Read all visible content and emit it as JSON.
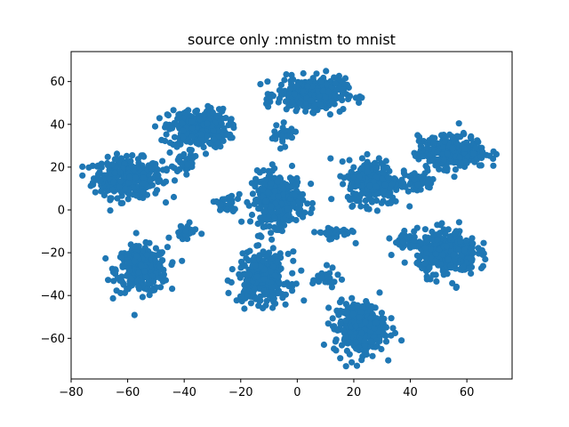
{
  "chart_data": {
    "type": "scatter",
    "title": "source only :mnistm to mnist",
    "xlabel": "",
    "ylabel": "",
    "xlim": [
      -80,
      76
    ],
    "ylim": [
      -79,
      74
    ],
    "xticks": [
      -80,
      -60,
      -40,
      -20,
      0,
      20,
      40,
      60
    ],
    "yticks": [
      -60,
      -40,
      -20,
      0,
      20,
      40,
      60
    ],
    "grid": false,
    "marker_color": "#1f77b4",
    "series": [
      {
        "clusters": [
          {
            "center": [
              -60,
              15
            ],
            "spread": [
              8,
              6
            ],
            "count": 320
          },
          {
            "center": [
              -55,
              -28
            ],
            "spread": [
              6,
              7
            ],
            "count": 320
          },
          {
            "center": [
              -35,
              38
            ],
            "spread": [
              7,
              6
            ],
            "count": 300
          },
          {
            "center": [
              -7,
              5
            ],
            "spread": [
              6,
              8
            ],
            "count": 320
          },
          {
            "center": [
              5,
              54
            ],
            "spread": [
              8,
              5
            ],
            "count": 320
          },
          {
            "center": [
              27,
              13
            ],
            "spread": [
              6,
              7
            ],
            "count": 300
          },
          {
            "center": [
              22,
              -55
            ],
            "spread": [
              6,
              8
            ],
            "count": 320
          },
          {
            "center": [
              55,
              27
            ],
            "spread": [
              8,
              5
            ],
            "count": 320
          },
          {
            "center": [
              53,
              -20
            ],
            "spread": [
              7,
              7
            ],
            "count": 320
          },
          {
            "center": [
              -12,
              -32
            ],
            "spread": [
              6,
              8
            ],
            "count": 300
          },
          {
            "center": [
              -40,
              -10
            ],
            "spread": [
              3,
              2
            ],
            "count": 40
          },
          {
            "center": [
              -25,
              2
            ],
            "spread": [
              3,
              3
            ],
            "count": 30
          },
          {
            "center": [
              13,
              -11
            ],
            "spread": [
              4,
              2
            ],
            "count": 40
          },
          {
            "center": [
              43,
              13
            ],
            "spread": [
              4,
              3
            ],
            "count": 40
          },
          {
            "center": [
              40,
              -15
            ],
            "spread": [
              4,
              3
            ],
            "count": 40
          },
          {
            "center": [
              -40,
              22
            ],
            "spread": [
              3,
              4
            ],
            "count": 40
          },
          {
            "center": [
              -5,
              35
            ],
            "spread": [
              3,
              3
            ],
            "count": 30
          },
          {
            "center": [
              10,
              -32
            ],
            "spread": [
              3,
              3
            ],
            "count": 25
          }
        ]
      }
    ]
  }
}
